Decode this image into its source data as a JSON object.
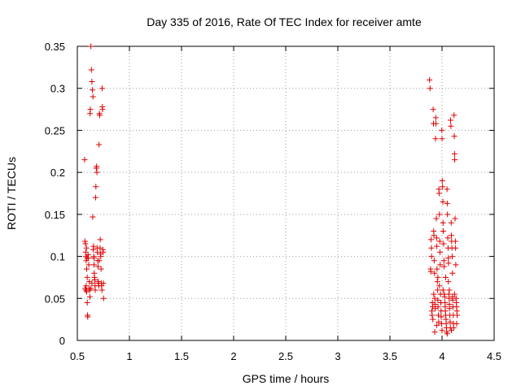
{
  "chart_data": {
    "type": "scatter",
    "title": "Day 335 of 2016, Rate Of TEC Index for receiver amte",
    "xlabel": "GPS time / hours",
    "ylabel": "ROTI / TECUs",
    "xlim": [
      0.5,
      4.5
    ],
    "ylim": [
      0,
      0.35
    ],
    "grid": true,
    "marker": "+",
    "color": "#e00000",
    "x_ticks": [
      {
        "value": 0.5,
        "label": "0.5"
      },
      {
        "value": 1.0,
        "label": "1"
      },
      {
        "value": 1.5,
        "label": "1.5"
      },
      {
        "value": 2.0,
        "label": "2"
      },
      {
        "value": 2.5,
        "label": "2.5"
      },
      {
        "value": 3.0,
        "label": "3"
      },
      {
        "value": 3.5,
        "label": "3.5"
      },
      {
        "value": 4.0,
        "label": "4"
      },
      {
        "value": 4.5,
        "label": "4.5"
      }
    ],
    "y_ticks": [
      {
        "value": 0,
        "label": "0"
      },
      {
        "value": 0.05,
        "label": "0.05"
      },
      {
        "value": 0.1,
        "label": "0.1"
      },
      {
        "value": 0.15,
        "label": "0.15"
      },
      {
        "value": 0.2,
        "label": "0.2"
      },
      {
        "value": 0.25,
        "label": "0.25"
      },
      {
        "value": 0.3,
        "label": "0.3"
      },
      {
        "value": 0.35,
        "label": "0.35"
      }
    ],
    "points": [
      [
        0.57,
        0.215
      ],
      [
        0.573,
        0.118
      ],
      [
        0.578,
        0.115
      ],
      [
        0.58,
        0.105
      ],
      [
        0.583,
        0.1
      ],
      [
        0.585,
        0.095
      ],
      [
        0.588,
        0.11
      ],
      [
        0.59,
        0.085
      ],
      [
        0.593,
        0.098
      ],
      [
        0.595,
        0.075
      ],
      [
        0.575,
        0.062
      ],
      [
        0.58,
        0.06
      ],
      [
        0.585,
        0.065
      ],
      [
        0.59,
        0.058
      ],
      [
        0.595,
        0.045
      ],
      [
        0.598,
        0.03
      ],
      [
        0.6,
        0.028
      ],
      [
        0.603,
        0.102
      ],
      [
        0.606,
        0.098
      ],
      [
        0.61,
        0.09
      ],
      [
        0.612,
        0.062
      ],
      [
        0.615,
        0.07
      ],
      [
        0.618,
        0.06
      ],
      [
        0.62,
        0.052
      ],
      [
        0.622,
        0.27
      ],
      [
        0.625,
        0.275
      ],
      [
        0.63,
        0.35
      ],
      [
        0.635,
        0.322
      ],
      [
        0.64,
        0.308
      ],
      [
        0.645,
        0.298
      ],
      [
        0.65,
        0.29
      ],
      [
        0.648,
        0.147
      ],
      [
        0.652,
        0.108
      ],
      [
        0.655,
        0.112
      ],
      [
        0.658,
        0.1
      ],
      [
        0.66,
        0.098
      ],
      [
        0.662,
        0.08
      ],
      [
        0.665,
        0.075
      ],
      [
        0.668,
        0.072
      ],
      [
        0.67,
        0.065
      ],
      [
        0.672,
        0.06
      ],
      [
        0.675,
        0.17
      ],
      [
        0.678,
        0.183
      ],
      [
        0.682,
        0.205
      ],
      [
        0.685,
        0.207
      ],
      [
        0.688,
        0.2
      ],
      [
        0.69,
        0.11
      ],
      [
        0.693,
        0.105
      ],
      [
        0.695,
        0.095
      ],
      [
        0.698,
        0.088
      ],
      [
        0.7,
        0.07
      ],
      [
        0.703,
        0.068
      ],
      [
        0.706,
        0.065
      ],
      [
        0.708,
        0.233
      ],
      [
        0.712,
        0.27
      ],
      [
        0.715,
        0.268
      ],
      [
        0.718,
        0.11
      ],
      [
        0.72,
        0.12
      ],
      [
        0.722,
        0.103
      ],
      [
        0.725,
        0.1
      ],
      [
        0.728,
        0.085
      ],
      [
        0.73,
        0.068
      ],
      [
        0.733,
        0.065
      ],
      [
        0.736,
        0.06
      ],
      [
        0.738,
        0.3
      ],
      [
        0.74,
        0.278
      ],
      [
        0.742,
        0.275
      ],
      [
        0.745,
        0.108
      ],
      [
        0.748,
        0.105
      ],
      [
        0.75,
        0.068
      ],
      [
        0.752,
        0.05
      ],
      [
        0.71,
        0.095
      ],
      [
        0.66,
        0.09
      ],
      [
        0.64,
        0.068
      ],
      [
        0.63,
        0.062
      ],
      [
        3.88,
        0.31
      ],
      [
        3.885,
        0.3
      ],
      [
        3.89,
        0.085
      ],
      [
        3.892,
        0.082
      ],
      [
        3.895,
        0.12
      ],
      [
        3.898,
        0.11
      ],
      [
        3.9,
        0.1
      ],
      [
        3.902,
        0.035
      ],
      [
        3.905,
        0.03
      ],
      [
        3.908,
        0.045
      ],
      [
        3.91,
        0.04
      ],
      [
        3.912,
        0.025
      ],
      [
        3.915,
        0.275
      ],
      [
        3.918,
        0.258
      ],
      [
        3.92,
        0.13
      ],
      [
        3.922,
        0.125
      ],
      [
        3.925,
        0.095
      ],
      [
        3.928,
        0.08
      ],
      [
        3.93,
        0.05
      ],
      [
        3.932,
        0.043
      ],
      [
        3.935,
        0.038
      ],
      [
        3.938,
        0.24
      ],
      [
        3.94,
        0.265
      ],
      [
        3.942,
        0.258
      ],
      [
        3.945,
        0.145
      ],
      [
        3.948,
        0.122
      ],
      [
        3.95,
        0.112
      ],
      [
        3.952,
        0.085
      ],
      [
        3.955,
        0.07
      ],
      [
        3.958,
        0.06
      ],
      [
        3.96,
        0.048
      ],
      [
        3.962,
        0.04
      ],
      [
        3.965,
        0.03
      ],
      [
        3.968,
        0.022
      ],
      [
        3.97,
        0.18
      ],
      [
        3.972,
        0.175
      ],
      [
        3.975,
        0.15
      ],
      [
        3.978,
        0.118
      ],
      [
        3.98,
        0.105
      ],
      [
        3.982,
        0.09
      ],
      [
        3.985,
        0.055
      ],
      [
        3.988,
        0.045
      ],
      [
        3.99,
        0.035
      ],
      [
        3.992,
        0.028
      ],
      [
        3.995,
        0.02
      ],
      [
        3.998,
        0.25
      ],
      [
        4.0,
        0.24
      ],
      [
        4.002,
        0.19
      ],
      [
        4.005,
        0.183
      ],
      [
        4.008,
        0.165
      ],
      [
        4.01,
        0.14
      ],
      [
        4.012,
        0.13
      ],
      [
        4.015,
        0.115
      ],
      [
        4.018,
        0.095
      ],
      [
        4.02,
        0.088
      ],
      [
        4.022,
        0.055
      ],
      [
        4.025,
        0.052
      ],
      [
        4.028,
        0.045
      ],
      [
        4.03,
        0.04
      ],
      [
        4.032,
        0.035
      ],
      [
        4.035,
        0.03
      ],
      [
        4.038,
        0.025
      ],
      [
        4.04,
        0.02
      ],
      [
        4.042,
        0.015
      ],
      [
        4.045,
        0.01
      ],
      [
        4.048,
        0.18
      ],
      [
        4.05,
        0.163
      ],
      [
        4.052,
        0.15
      ],
      [
        4.055,
        0.122
      ],
      [
        4.058,
        0.11
      ],
      [
        4.06,
        0.098
      ],
      [
        4.062,
        0.092
      ],
      [
        4.065,
        0.055
      ],
      [
        4.068,
        0.05
      ],
      [
        4.07,
        0.043
      ],
      [
        4.072,
        0.038
      ],
      [
        4.075,
        0.03
      ],
      [
        4.078,
        0.022
      ],
      [
        4.08,
        0.015
      ],
      [
        4.082,
        0.262
      ],
      [
        4.085,
        0.255
      ],
      [
        4.088,
        0.14
      ],
      [
        4.09,
        0.125
      ],
      [
        4.092,
        0.118
      ],
      [
        4.095,
        0.11
      ],
      [
        4.098,
        0.1
      ],
      [
        4.1,
        0.052
      ],
      [
        4.102,
        0.048
      ],
      [
        4.105,
        0.04
      ],
      [
        4.108,
        0.03
      ],
      [
        4.11,
        0.02
      ],
      [
        4.112,
        0.015
      ],
      [
        4.115,
        0.268
      ],
      [
        4.118,
        0.243
      ],
      [
        4.12,
        0.222
      ],
      [
        4.122,
        0.215
      ],
      [
        4.125,
        0.145
      ],
      [
        4.128,
        0.118
      ],
      [
        4.13,
        0.11
      ],
      [
        4.132,
        0.09
      ],
      [
        4.135,
        0.05
      ],
      [
        4.138,
        0.045
      ],
      [
        4.14,
        0.04
      ],
      [
        4.142,
        0.035
      ],
      [
        4.145,
        0.03
      ],
      [
        3.93,
        0.01
      ],
      [
        3.96,
        0.075
      ],
      [
        4.01,
        0.06
      ],
      [
        4.06,
        0.07
      ],
      [
        4.1,
        0.08
      ],
      [
        3.95,
        0.018
      ],
      [
        4.0,
        0.012
      ],
      [
        4.05,
        0.008
      ],
      [
        4.09,
        0.012
      ],
      [
        4.14,
        0.02
      ],
      [
        3.92,
        0.055
      ],
      [
        3.975,
        0.065
      ],
      [
        4.035,
        0.075
      ],
      [
        4.07,
        0.06
      ],
      [
        4.12,
        0.055
      ]
    ]
  }
}
